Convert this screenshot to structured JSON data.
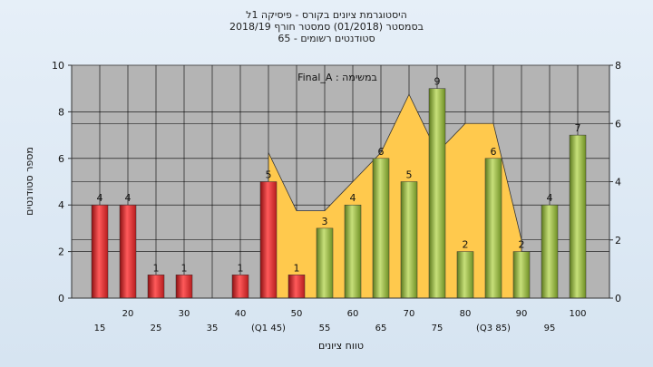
{
  "chart_data": {
    "type": "bar",
    "title_lines": [
      "היסטוגרמת ציונים בקורס - פיסיקה 1ל",
      "בסמסטר  (01/2018)  סמסטר חורף  2018/19",
      "סטודנטים רשומים - 65"
    ],
    "subtitle": "במשימה : Final_A",
    "xlabel": "טווח ציונים",
    "ylabel": "מספר סטודנטים",
    "ylim": [
      0,
      10
    ],
    "y_ticks": [
      0,
      2,
      4,
      6,
      8,
      10
    ],
    "y2lim": [
      0,
      8
    ],
    "y2_ticks": [
      0,
      2,
      4,
      6,
      8
    ],
    "grid": true,
    "categories": [
      "15",
      "20",
      "25",
      "30",
      "35",
      "40",
      "45",
      "50",
      "55",
      "60",
      "65",
      "70",
      "75",
      "80",
      "85",
      "90",
      "95",
      "100"
    ],
    "x_tick_labels": [
      "15",
      "20",
      "25",
      "30",
      "35",
      "40",
      "(Q1 45)",
      "50",
      "55",
      "60",
      "65",
      "70",
      "75",
      "80",
      "(Q3 85)",
      "90",
      "95",
      "100"
    ],
    "values": [
      4,
      4,
      1,
      1,
      0,
      1,
      5,
      1,
      3,
      4,
      6,
      5,
      9,
      2,
      6,
      2,
      4,
      7
    ],
    "bar_labels": [
      "4",
      "4",
      "1",
      "1",
      "",
      "1",
      "5",
      "1",
      "3",
      "4",
      "6",
      "5",
      "9",
      "2",
      "6",
      "2",
      "4",
      "7"
    ],
    "bar_groups": [
      "fail",
      "fail",
      "fail",
      "fail",
      "fail",
      "fail",
      "fail",
      "fail",
      "pass",
      "pass",
      "pass",
      "pass",
      "pass",
      "pass",
      "pass",
      "pass",
      "pass",
      "pass"
    ],
    "area_series": {
      "x": [
        "45",
        "50",
        "55",
        "60",
        "65",
        "70",
        "75",
        "80",
        "85",
        "90"
      ],
      "values": [
        5,
        3,
        3,
        4,
        5,
        7,
        5,
        6,
        6,
        2
      ]
    },
    "colors": {
      "fail_bar": "#d9282a",
      "pass_bar": "#8fb339",
      "area": "#ffc94d",
      "plot_bg": "#b4b4b4"
    }
  }
}
